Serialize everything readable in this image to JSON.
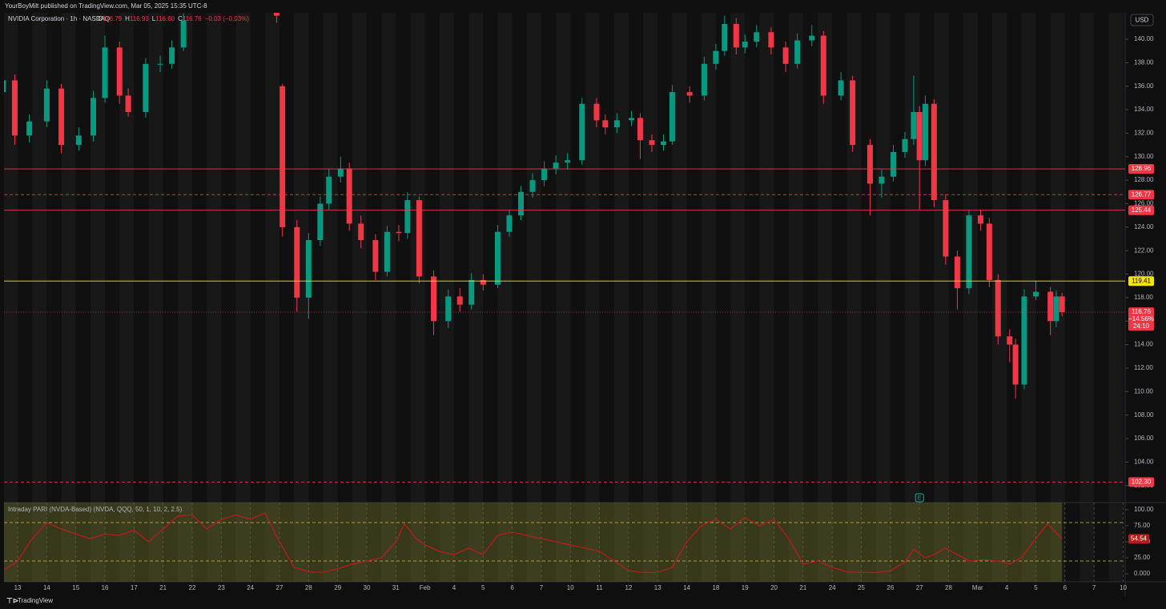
{
  "header": {
    "attribution": "YourBoyMilt published on TradingView.com, Mar 05, 2025 15:35 UTC-8"
  },
  "footer": {
    "brand": "TradingView"
  },
  "chart_data": [
    {
      "type": "candlestick",
      "title": "NVIDIA Corporation · 1h · NASDAQ",
      "currency": "USD",
      "legend": {
        "keys": [
          "O",
          "H",
          "L",
          "C"
        ],
        "values": [
          {
            "value": 116.79,
            "label": "116.79"
          },
          {
            "value": 116.93,
            "label": "116.93"
          },
          {
            "value": 116.6,
            "label": "116.60"
          },
          {
            "value": 116.76,
            "label": "116.76"
          }
        ],
        "change": {
          "value": -0.03,
          "label": "−0.03 (−0.03%)"
        }
      },
      "up_color": "#089981",
      "down_color": "#f23645",
      "x": [
        -0.5,
        -0.1,
        0.4,
        1.0,
        1.5,
        2.1,
        2.6,
        3.0,
        3.5,
        3.8,
        4.4,
        4.9,
        5.3,
        5.7,
        8.9,
        9.1,
        9.6,
        10.0,
        10.4,
        10.7,
        11.1,
        11.4,
        11.8,
        12.3,
        12.7,
        13.1,
        13.4,
        13.8,
        14.3,
        14.8,
        15.2,
        15.6,
        16.0,
        16.5,
        16.9,
        17.3,
        17.7,
        18.1,
        18.5,
        18.9,
        19.4,
        19.9,
        20.2,
        20.6,
        21.1,
        21.4,
        21.8,
        22.2,
        22.5,
        23.1,
        23.6,
        24.0,
        24.3,
        24.7,
        25.0,
        25.4,
        25.9,
        26.4,
        26.8,
        27.3,
        27.7,
        28.3,
        28.7,
        29.3,
        29.7,
        30.1,
        30.5,
        30.8,
        31.0,
        31.2,
        31.5,
        31.9,
        32.3,
        32.7,
        33.1,
        33.4,
        33.7,
        34.1,
        34.3,
        34.6,
        35.0,
        35.5,
        35.7,
        35.9
      ],
      "open": [
        135.5,
        136.5,
        131.8,
        133,
        135.8,
        131,
        131.8,
        135,
        139.3,
        135.2,
        133.8,
        137.9,
        137.9,
        139.3,
        142.5,
        136,
        124,
        118,
        122.9,
        126,
        128.3,
        129,
        124.3,
        122.9,
        120.2,
        123.6,
        123.5,
        126.3,
        119.8,
        116,
        118.1,
        117.4,
        119.5,
        119.1,
        123.6,
        125,
        127,
        128,
        129,
        129.5,
        129.7,
        134.5,
        133.1,
        132.5,
        133.1,
        133.3,
        131.4,
        131,
        131.3,
        135.5,
        135.2,
        137.9,
        139,
        141.3,
        139.3,
        139.8,
        140.6,
        139.3,
        137.9,
        139.9,
        140.3,
        135.2,
        136.5,
        131,
        127.7,
        128.3,
        130.4,
        131.5,
        133.8,
        129.7,
        134.5,
        126.3,
        121.5,
        118.8,
        125,
        124.3,
        119.5,
        114.7,
        114,
        110.6,
        118.1,
        118.5,
        116,
        118.1
      ],
      "high": [
        137.1,
        137.0,
        133.6,
        136.5,
        136.2,
        132.5,
        135.6,
        140.3,
        139.8,
        135.8,
        138.4,
        138.6,
        139.9,
        142.2,
        142.6,
        136.2,
        124.6,
        123.5,
        126.6,
        129,
        130,
        129.5,
        125,
        123.4,
        124.1,
        124.2,
        127,
        126.6,
        120.3,
        118.7,
        118.8,
        120.1,
        120,
        124.2,
        125.5,
        127.5,
        128.6,
        129.6,
        130.1,
        130.3,
        135,
        135,
        133.6,
        133.7,
        133.9,
        133.7,
        131.9,
        131.9,
        136.1,
        136,
        138.5,
        139.6,
        142,
        141.8,
        140.4,
        141.2,
        141,
        139.8,
        140.5,
        141.2,
        140.7,
        137.2,
        136.9,
        131.5,
        128.9,
        131,
        132.1,
        136.9,
        134.3,
        135.2,
        134.9,
        126.8,
        122,
        125.5,
        125.5,
        124.8,
        120,
        115.3,
        114.5,
        118.7,
        119.4,
        118.9,
        118.6,
        118.4
      ],
      "low": [
        134.9,
        131.0,
        131.2,
        132.5,
        130.3,
        130.5,
        131.3,
        134.6,
        134.5,
        133.4,
        133.3,
        137.2,
        137.5,
        139,
        141.4,
        123.2,
        116.8,
        116.2,
        122.4,
        125.5,
        127.8,
        123.7,
        122.2,
        119.5,
        119.8,
        122.8,
        123,
        119.2,
        114.8,
        115.4,
        116.8,
        117,
        118.6,
        118.8,
        123.2,
        124.6,
        126.5,
        127.5,
        128.5,
        128.9,
        129.3,
        132.5,
        131.9,
        132,
        132.6,
        129.8,
        130.4,
        130.5,
        131,
        134.6,
        134.8,
        137.4,
        138.6,
        138.7,
        138.8,
        139.3,
        138.7,
        137.2,
        137.5,
        139.4,
        134.5,
        134.8,
        130.4,
        125,
        126.5,
        127.9,
        129.9,
        131,
        125.5,
        129.2,
        125.7,
        120.8,
        117,
        118.3,
        123.7,
        118.9,
        114,
        112.5,
        109.4,
        110.2,
        117.8,
        114.8,
        115.5,
        116.4
      ],
      "close": [
        136.5,
        131.8,
        133,
        135.8,
        131,
        131.8,
        135,
        139.3,
        135.2,
        133.8,
        137.9,
        137.9,
        139.3,
        141.6,
        142.0,
        124,
        118,
        122.9,
        126,
        128.3,
        129,
        124.3,
        122.9,
        120.2,
        123.6,
        123.5,
        126.3,
        119.8,
        116,
        118.1,
        117.4,
        119.5,
        119.1,
        123.6,
        125,
        127,
        128,
        129,
        129.5,
        129.7,
        134.5,
        133.1,
        132.5,
        133.1,
        133.3,
        131.4,
        131,
        131.3,
        135.5,
        135.2,
        137.9,
        139,
        141.3,
        139.3,
        139.8,
        140.6,
        139.3,
        137.9,
        139.9,
        140.3,
        135.2,
        136.5,
        131,
        127.7,
        128.3,
        130.4,
        131.5,
        133.8,
        129.7,
        134.5,
        126.3,
        121.5,
        118.8,
        125,
        124.3,
        119.5,
        114.7,
        114,
        110.6,
        118.1,
        118.5,
        116,
        118.1,
        116.76
      ],
      "xlim": [
        -0.47,
        38.07
      ],
      "xticks": [
        {
          "value": 0,
          "label": "13"
        },
        {
          "value": 1,
          "label": "14"
        },
        {
          "value": 2,
          "label": "15"
        },
        {
          "value": 3,
          "label": "16"
        },
        {
          "value": 4,
          "label": "17"
        },
        {
          "value": 5,
          "label": "21"
        },
        {
          "value": 6,
          "label": "22"
        },
        {
          "value": 7,
          "label": "23"
        },
        {
          "value": 8,
          "label": "24"
        },
        {
          "value": 9,
          "label": "27"
        },
        {
          "value": 10,
          "label": "28"
        },
        {
          "value": 11,
          "label": "29"
        },
        {
          "value": 12,
          "label": "30"
        },
        {
          "value": 13,
          "label": "31"
        },
        {
          "value": 14,
          "label": "Feb"
        },
        {
          "value": 15,
          "label": "4"
        },
        {
          "value": 16,
          "label": "5"
        },
        {
          "value": 17,
          "label": "6"
        },
        {
          "value": 18,
          "label": "7"
        },
        {
          "value": 19,
          "label": "10"
        },
        {
          "value": 20,
          "label": "11"
        },
        {
          "value": 21,
          "label": "12"
        },
        {
          "value": 22,
          "label": "13"
        },
        {
          "value": 23,
          "label": "14"
        },
        {
          "value": 24,
          "label": "18"
        },
        {
          "value": 25,
          "label": "19"
        },
        {
          "value": 26,
          "label": "20"
        },
        {
          "value": 27,
          "label": "21"
        },
        {
          "value": 28,
          "label": "24"
        },
        {
          "value": 29,
          "label": "25"
        },
        {
          "value": 30,
          "label": "26"
        },
        {
          "value": 31,
          "label": "27"
        },
        {
          "value": 32,
          "label": "28"
        },
        {
          "value": 33,
          "label": "Mar"
        },
        {
          "value": 34,
          "label": "4"
        },
        {
          "value": 35,
          "label": "5"
        },
        {
          "value": 36,
          "label": "6"
        },
        {
          "value": 37,
          "label": "7"
        },
        {
          "value": 38,
          "label": "10"
        }
      ],
      "ylim": [
        100.55,
        142.25
      ],
      "yticks": [
        {
          "value": 102,
          "label": "102.00"
        },
        {
          "value": 104,
          "label": "104.00"
        },
        {
          "value": 106,
          "label": "106.00"
        },
        {
          "value": 108,
          "label": "108.00"
        },
        {
          "value": 110,
          "label": "110.00"
        },
        {
          "value": 112,
          "label": "112.00"
        },
        {
          "value": 114,
          "label": "114.00"
        },
        {
          "value": 116,
          "label": "116.00"
        },
        {
          "value": 118,
          "label": "118.00"
        },
        {
          "value": 120,
          "label": "120.00"
        },
        {
          "value": 122,
          "label": "122.00"
        },
        {
          "value": 124,
          "label": "124.00"
        },
        {
          "value": 126,
          "label": "126.00"
        },
        {
          "value": 128,
          "label": "128.00"
        },
        {
          "value": 130,
          "label": "130.00"
        },
        {
          "value": 132,
          "label": "132.00"
        },
        {
          "value": 134,
          "label": "134.00"
        },
        {
          "value": 136,
          "label": "136.00"
        },
        {
          "value": 138,
          "label": "138.00"
        },
        {
          "value": 140,
          "label": "140.00"
        }
      ],
      "levels": [
        {
          "value": 128.96,
          "color": "#f23645",
          "dashed": false
        },
        {
          "value": 126.77,
          "color": "#f23645",
          "dashed": true
        },
        {
          "value": 125.44,
          "color": "#f23645",
          "dashed": false
        },
        {
          "value": 119.41,
          "color": "#f5e50b",
          "dashed": false
        },
        {
          "value": 102.3,
          "label": "102.30",
          "color": "#f23645",
          "dashed": true
        }
      ],
      "last": {
        "value": 116.76,
        "change": {
          "value": -14.56,
          "label": "−14.56%"
        },
        "countdown": "24:10",
        "color": "#f23645"
      },
      "event_marker": {
        "x": 31,
        "label": "E"
      }
    },
    {
      "type": "line",
      "title": "Intraday PARI (NVDA-Based) (NVDA, QQQ, 50, 1, 10, 2, 2.5)",
      "color": "#b71c1c",
      "x": [
        -0.5,
        0,
        0.5,
        1,
        1.5,
        2,
        2.5,
        3,
        3.5,
        4,
        4.5,
        5,
        5.5,
        6,
        6.5,
        7,
        7.5,
        8,
        8.5,
        9,
        9.5,
        10,
        10.5,
        11,
        11.5,
        12,
        12.5,
        13,
        13.3,
        13.7,
        14,
        14.5,
        15,
        15.5,
        16,
        16.5,
        17,
        17.5,
        18,
        18.5,
        19,
        19.5,
        20,
        20.5,
        21,
        21.5,
        22,
        22.5,
        23,
        23.5,
        24,
        24.5,
        25,
        25.5,
        26,
        26.5,
        27,
        27.5,
        28,
        28.5,
        29,
        29.5,
        30,
        30.5,
        30.8,
        31.2,
        31.5,
        31.9,
        32.3,
        32.7,
        33.2,
        33.7,
        34.1,
        34.5,
        35,
        35.4,
        35.9
      ],
      "values": [
        5,
        20,
        55,
        80,
        70,
        62,
        55,
        62,
        60,
        68,
        50,
        70,
        90,
        92,
        70,
        85,
        92,
        85,
        95,
        50,
        10,
        3,
        2,
        8,
        15,
        20,
        25,
        50,
        78,
        55,
        45,
        35,
        30,
        40,
        30,
        60,
        65,
        60,
        55,
        50,
        45,
        40,
        35,
        20,
        5,
        2,
        2,
        10,
        50,
        75,
        85,
        70,
        88,
        75,
        85,
        55,
        15,
        20,
        10,
        3,
        2,
        2,
        5,
        18,
        38,
        25,
        30,
        40,
        30,
        20,
        22,
        20,
        15,
        25,
        55,
        78,
        54.54
      ],
      "last_value": 54.54,
      "bands": [
        80,
        20
      ],
      "ylim": [
        -12.5,
        111.25
      ],
      "yticks": [
        {
          "value": 0,
          "label": "0.000"
        },
        {
          "value": 25,
          "label": "25.00"
        },
        {
          "value": 50,
          "label": "50.00"
        },
        {
          "value": 75,
          "label": "75.00"
        },
        {
          "value": 100,
          "label": "100.00"
        }
      ]
    }
  ]
}
